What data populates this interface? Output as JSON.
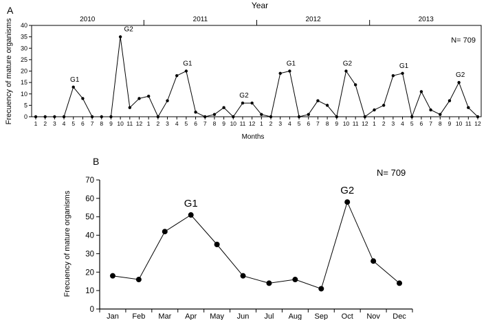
{
  "chart_data": [
    {
      "panel_label": "A",
      "type": "line",
      "title": "Year",
      "xlabel": "Months",
      "ylabel": "Frecuency of mature organisms",
      "annotation": "N= 709",
      "years": [
        "2010",
        "2011",
        "2012",
        "2013"
      ],
      "ylim": [
        0,
        40
      ],
      "yticks": [
        0,
        5,
        10,
        15,
        20,
        25,
        30,
        35,
        40
      ],
      "x": [
        "1",
        "2",
        "3",
        "4",
        "5",
        "6",
        "7",
        "8",
        "9",
        "10",
        "11",
        "12",
        "1",
        "2",
        "3",
        "4",
        "5",
        "6",
        "7",
        "8",
        "9",
        "10",
        "11",
        "12",
        "1",
        "2",
        "3",
        "4",
        "5",
        "6",
        "7",
        "8",
        "9",
        "10",
        "11",
        "12",
        "1",
        "2",
        "3",
        "4",
        "5",
        "6",
        "7",
        "8",
        "9",
        "10",
        "11",
        "12"
      ],
      "values": [
        0,
        0,
        0,
        0,
        13,
        8,
        0,
        0,
        0,
        35,
        4,
        8,
        9,
        0,
        7,
        18,
        20,
        2,
        0,
        1,
        4,
        0,
        6,
        6,
        1,
        0,
        19,
        20,
        0,
        1,
        7,
        5,
        0,
        20,
        14,
        0,
        3,
        5,
        18,
        19,
        0,
        11,
        3,
        1,
        7,
        15,
        4,
        0
      ],
      "point_labels": [
        {
          "index": 4,
          "text": "G1"
        },
        {
          "index": 9,
          "text": "G2"
        },
        {
          "index": 16,
          "text": "G1"
        },
        {
          "index": 22,
          "text": "G2"
        },
        {
          "index": 27,
          "text": "G1"
        },
        {
          "index": 33,
          "text": "G2"
        },
        {
          "index": 39,
          "text": "G1"
        },
        {
          "index": 45,
          "text": "G2"
        }
      ]
    },
    {
      "panel_label": "B",
      "type": "line",
      "ylabel": "Frecuency of mature organisms",
      "annotation": "N= 709",
      "categories": [
        "Jan",
        "Feb",
        "Mar",
        "Apr",
        "May",
        "Jun",
        "Jul",
        "Aug",
        "Sep",
        "Oct",
        "Nov",
        "Dec"
      ],
      "values": [
        18,
        16,
        42,
        51,
        35,
        18,
        14,
        16,
        11,
        58,
        26,
        14
      ],
      "ylim": [
        0,
        70
      ],
      "yticks": [
        0,
        10,
        20,
        30,
        40,
        50,
        60,
        70
      ],
      "point_labels": [
        {
          "index": 3,
          "text": "G1"
        },
        {
          "index": 9,
          "text": "G2"
        }
      ]
    }
  ]
}
